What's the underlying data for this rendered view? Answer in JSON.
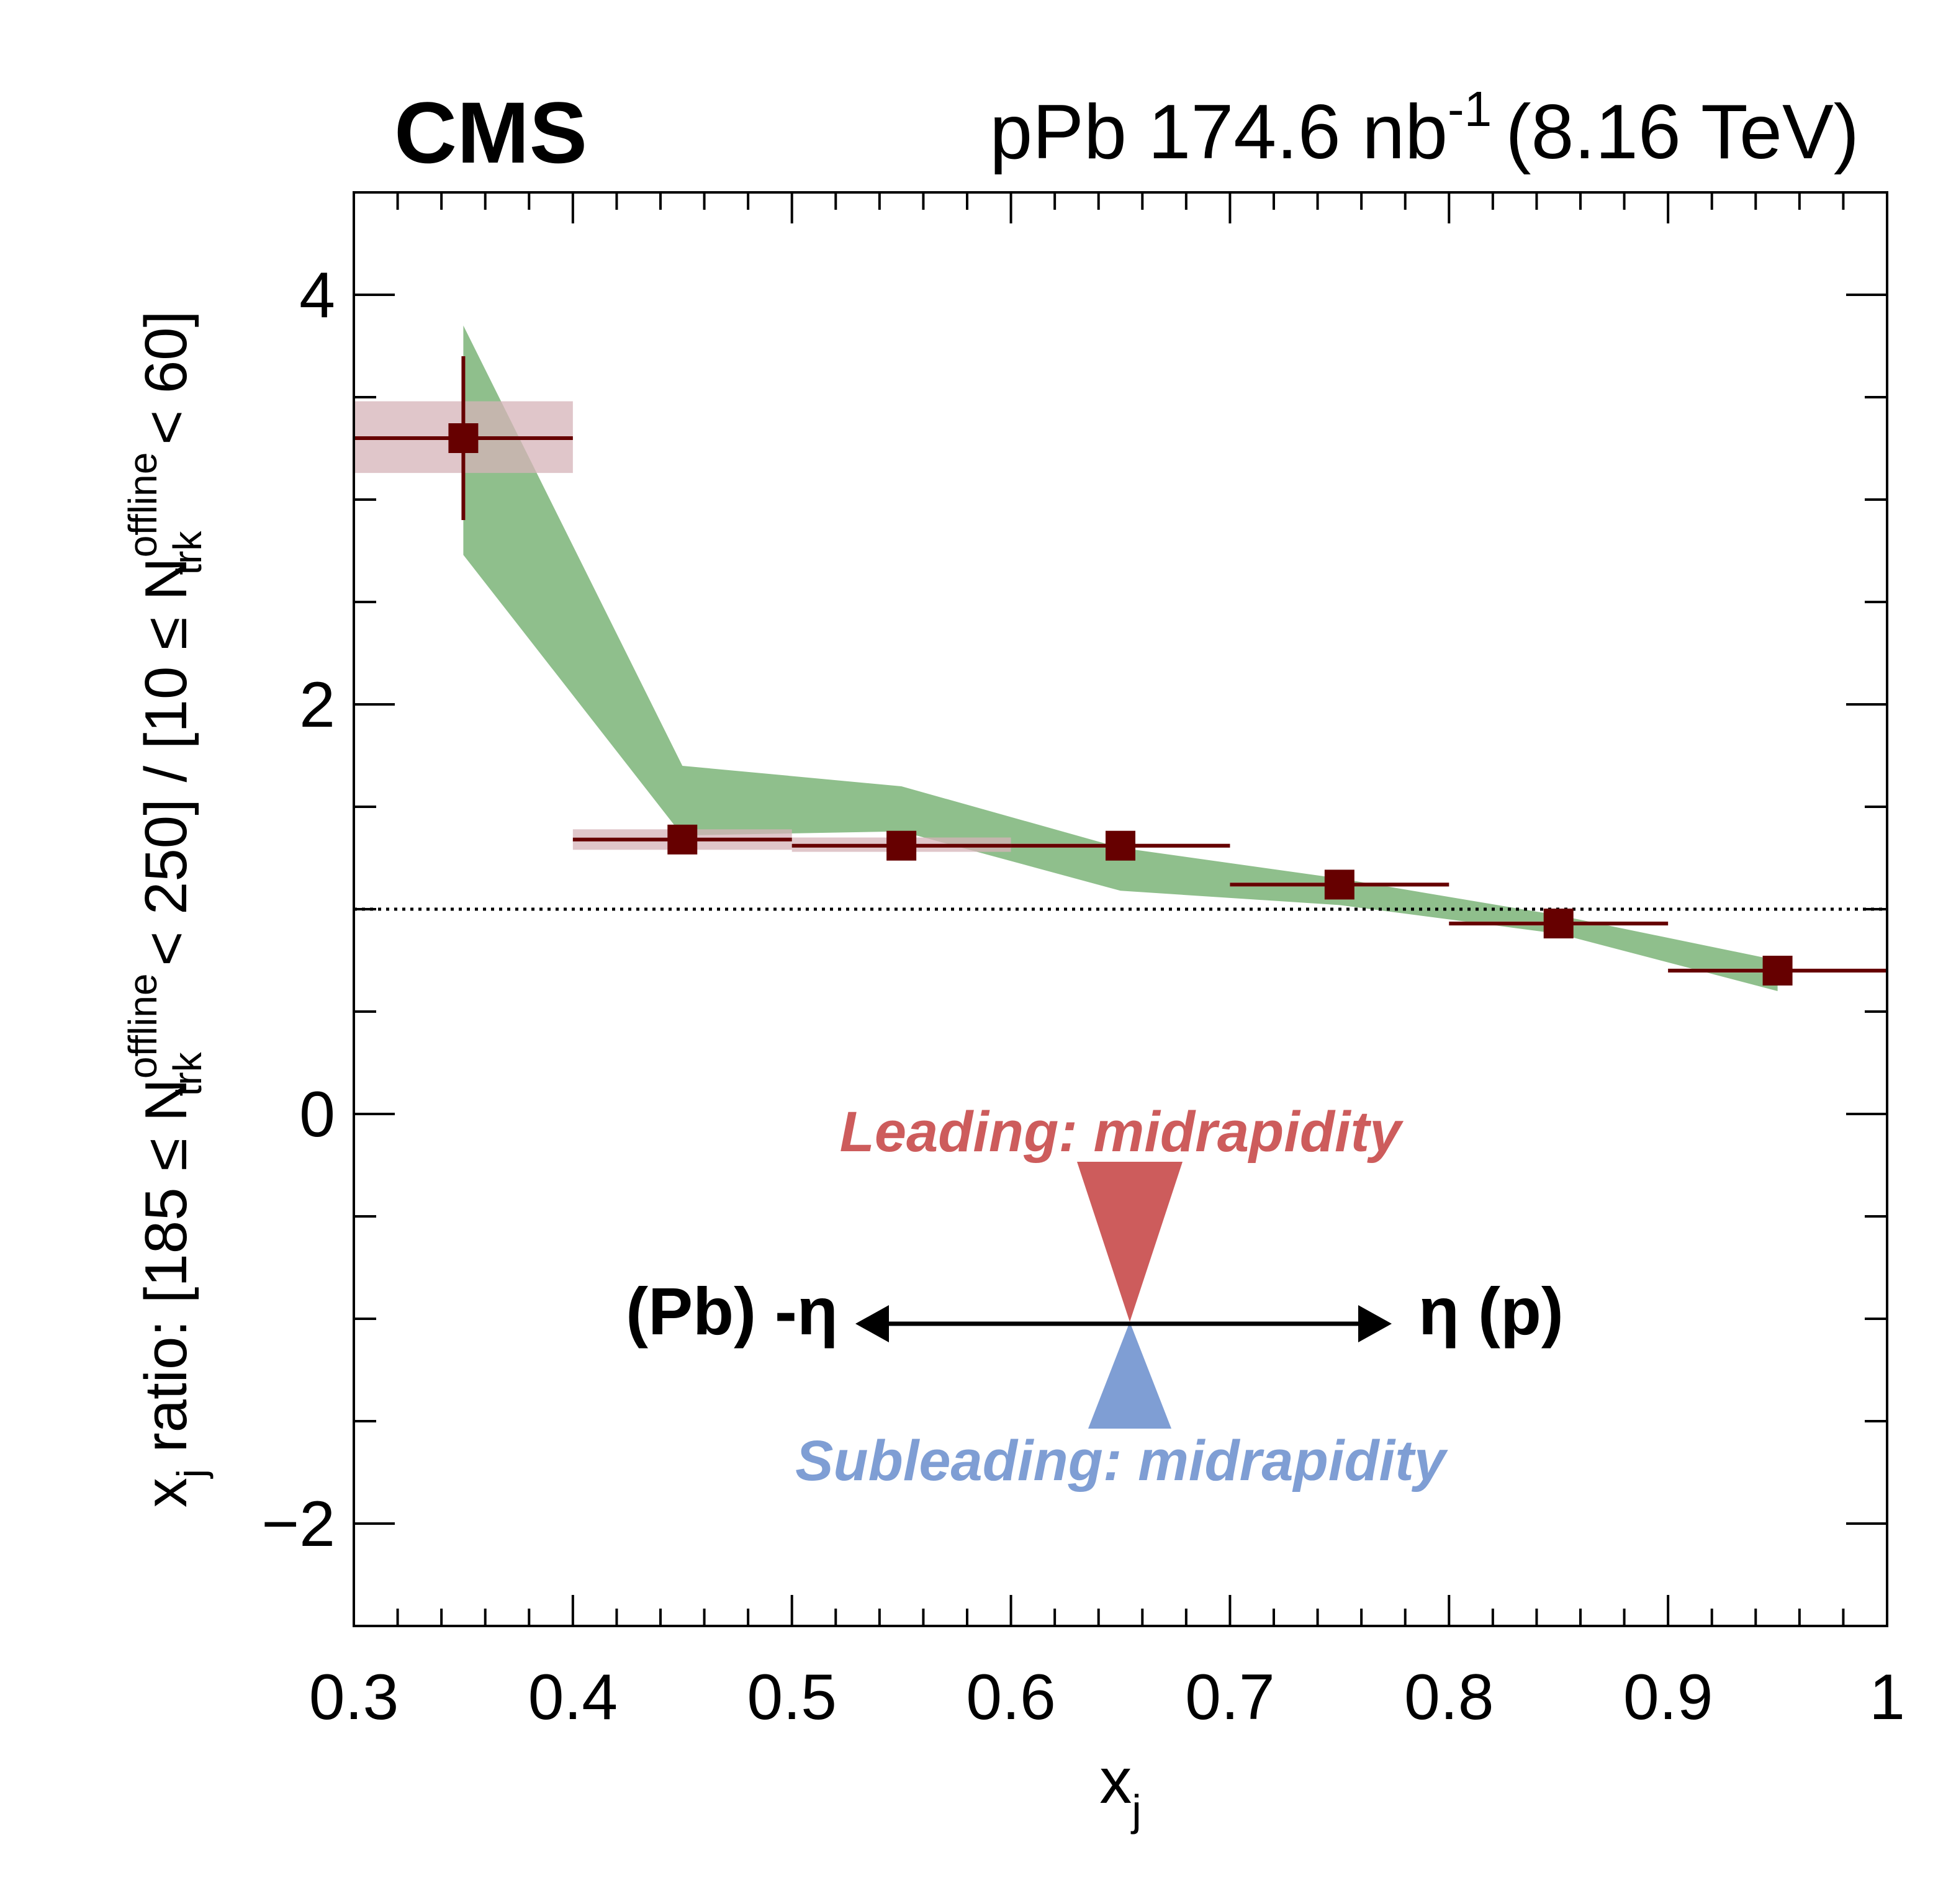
{
  "header": {
    "experiment": "CMS",
    "lumi_prefix": "pPb 174.6 nb",
    "lumi_exp": "-1",
    "energy": "(8.16 TeV)"
  },
  "labels": {
    "y_pre": "x",
    "y_pre_sub": "j",
    "y_mid1": " ratio: [185 ≤ N",
    "y_sup1": "offline",
    "y_sub1": "trk",
    "y_mid2": " < 250] / [10 ≤ N",
    "y_sup2": "offline",
    "y_sub2": "trk",
    "y_end": " < 60]",
    "x_main": "x",
    "x_sub": "j"
  },
  "annotations": {
    "leading": "Leading: midrapidity",
    "subleading": "Subleading: midrapidity",
    "left_label": "(Pb) -η",
    "right_label": "η (p)",
    "leading_color": "#cd5c5c",
    "subleading_color": "#7f9ed4"
  },
  "chart_data": {
    "type": "scatter",
    "xlim": [
      0.3,
      1.0
    ],
    "ylim": [
      -2.5,
      4.5
    ],
    "xticks": [
      0.3,
      0.4,
      0.5,
      0.6,
      0.7,
      0.8,
      0.9,
      1.0
    ],
    "xtick_labels": [
      "0.3",
      "0.4",
      "0.5",
      "0.6",
      "0.7",
      "0.8",
      "0.9",
      "1"
    ],
    "yticks": [
      -2,
      0,
      2,
      4
    ],
    "ytick_labels": [
      "−2",
      "0",
      "2",
      "4"
    ],
    "reference_line": 1.0,
    "points": [
      {
        "x": 0.35,
        "xlo": 0.3,
        "xhi": 0.4,
        "y": 3.3,
        "stat_lo": 2.9,
        "stat_hi": 3.7,
        "sys_lo": 3.13,
        "sys_hi": 3.48
      },
      {
        "x": 0.45,
        "xlo": 0.4,
        "xhi": 0.5,
        "y": 1.34,
        "stat_lo": 1.31,
        "stat_hi": 1.37,
        "sys_lo": 1.29,
        "sys_hi": 1.39
      },
      {
        "x": 0.55,
        "xlo": 0.5,
        "xhi": 0.6,
        "y": 1.31,
        "stat_lo": 1.28,
        "stat_hi": 1.34,
        "sys_lo": 1.28,
        "sys_hi": 1.35
      },
      {
        "x": 0.65,
        "xlo": 0.6,
        "xhi": 0.7,
        "y": 1.31,
        "stat_lo": 1.29,
        "stat_hi": 1.33,
        "sys_lo": 1.3,
        "sys_hi": 1.32
      },
      {
        "x": 0.75,
        "xlo": 0.7,
        "xhi": 0.8,
        "y": 1.12,
        "stat_lo": 1.1,
        "stat_hi": 1.14,
        "sys_lo": 1.11,
        "sys_hi": 1.13
      },
      {
        "x": 0.85,
        "xlo": 0.8,
        "xhi": 0.9,
        "y": 0.93,
        "stat_lo": 0.91,
        "stat_hi": 0.95,
        "sys_lo": 0.92,
        "sys_hi": 0.94
      },
      {
        "x": 0.95,
        "xlo": 0.9,
        "xhi": 1.0,
        "y": 0.7,
        "stat_lo": 0.68,
        "stat_hi": 0.72,
        "sys_lo": 0.69,
        "sys_hi": 0.71
      }
    ],
    "band": {
      "x": [
        0.35,
        0.45,
        0.55,
        0.65,
        0.75,
        0.85,
        0.95
      ],
      "upper": [
        3.85,
        1.7,
        1.6,
        1.3,
        1.15,
        0.97,
        0.75
      ],
      "lower": [
        2.73,
        1.36,
        1.38,
        1.09,
        1.02,
        0.88,
        0.6
      ]
    },
    "colors": {
      "points": "#660000",
      "sys_box": "#d6b3b8",
      "band": "#8fbf8c"
    }
  }
}
